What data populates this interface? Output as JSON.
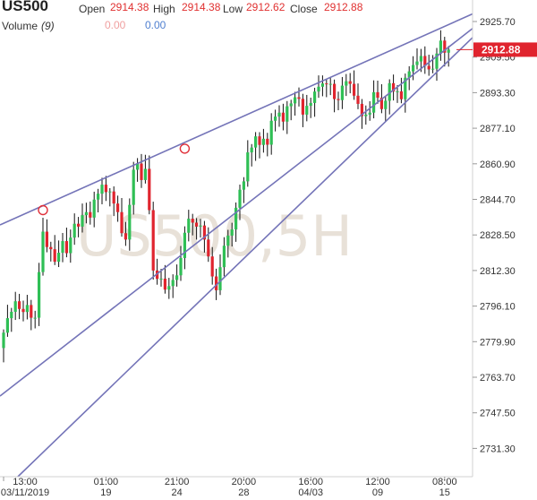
{
  "header": {
    "symbol": "US500",
    "open_label": "Open",
    "open_value": "2914.38",
    "high_label": "High",
    "high_value": "2914.38",
    "low_label": "Low",
    "low_value": "2912.62",
    "close_label": "Close",
    "close_value": "2912.88",
    "volume_label": "Volume",
    "volume_param": "(9)",
    "volume_value_1": "0.00",
    "volume_value_2": "0.00"
  },
  "watermark": "US500,5H",
  "colors": {
    "up": "#2fbf55",
    "down": "#e0242e",
    "trendline": "#7474b8",
    "price_tag": "#e0242e"
  },
  "chart_data": {
    "type": "candlestick",
    "title": "US500",
    "ylim": [
      2728,
      2933
    ],
    "y_ticks": [
      "2925.70",
      "2909.50",
      "2893.30",
      "2877.10",
      "2860.90",
      "2844.70",
      "2828.50",
      "2812.30",
      "2796.10",
      "2779.90",
      "2763.70",
      "2747.50",
      "2731.30"
    ],
    "x_ticks": [
      {
        "line1": "13:00",
        "line2": "03/11/2019",
        "i": 0
      },
      {
        "line1": "01:00",
        "line2": "19",
        "i": 26
      },
      {
        "line1": "21:00",
        "line2": "24",
        "i": 44
      },
      {
        "line1": "20:00",
        "line2": "28",
        "i": 61
      },
      {
        "line1": "16:00",
        "line2": "04/03",
        "i": 78
      },
      {
        "line1": "12:00",
        "line2": "09",
        "i": 95
      },
      {
        "line1": "08:00",
        "line2": "15",
        "i": 112
      }
    ],
    "current_price": "2912.88",
    "closes": [
      2784.0,
      2790.6,
      2793.5,
      2798.3,
      2794.8,
      2793.4,
      2796.6,
      2790.8,
      2790.8,
      2811.6,
      2830.0,
      2823.0,
      2822.0,
      2816.3,
      2820.4,
      2825.7,
      2820.2,
      2827.3,
      2833.6,
      2832.3,
      2837.5,
      2838.9,
      2836.4,
      2844.6,
      2847.3,
      2851.4,
      2848.0,
      2848.3,
      2842.8,
      2838.9,
      2829.3,
      2826.4,
      2842.2,
      2858.2,
      2861.0,
      2853.5,
      2858.6,
      2839.8,
      2812.3,
      2808.5,
      2808.6,
      2803.6,
      2805.2,
      2808.0,
      2810.1,
      2818.0,
      2829.5,
      2835.9,
      2834.1,
      2832.3,
      2832.8,
      2826.4,
      2818.7,
      2809.6,
      2803.3,
      2813.8,
      2823.6,
      2828.2,
      2831.0,
      2840.9,
      2849.1,
      2852.9,
      2866.1,
      2868.3,
      2873.4,
      2869.5,
      2872.3,
      2869.6,
      2880.5,
      2882.4,
      2884.2,
      2880.1,
      2887.1,
      2888.4,
      2891.2,
      2890.5,
      2883.3,
      2887.3,
      2888.6,
      2893.8,
      2896.0,
      2897.5,
      2897.3,
      2897.3,
      2890.4,
      2889.9,
      2896.5,
      2898.5,
      2897.3,
      2891.9,
      2888.2,
      2882.6,
      2883.3,
      2884.2,
      2893.5,
      2891.0,
      2885.8,
      2889.6,
      2897.6,
      2893.8,
      2893.9,
      2890.3,
      2900.1,
      2903.0,
      2905.9,
      2907.5,
      2910.0,
      2905.5,
      2903.9,
      2904.2,
      2911.1,
      2917.0,
      2911.5,
      2912.9
    ]
  },
  "trendlines": [
    {
      "name": "upper-resistance",
      "p1": [
        -1,
        2833.0
      ],
      "p2": [
        118,
        2928.3
      ]
    },
    {
      "name": "middle-channel",
      "p1": [
        -1,
        2755.0
      ],
      "p2": [
        118,
        2921.0
      ]
    },
    {
      "name": "lower-support",
      "p1": [
        8,
        2726.0
      ],
      "p2": [
        118,
        2916.5
      ]
    }
  ],
  "markers": [
    {
      "name": "anchor-circle-left",
      "i": 10,
      "price": 2839.8
    },
    {
      "name": "anchor-circle-right",
      "i": 46,
      "price": 2867.8
    }
  ]
}
